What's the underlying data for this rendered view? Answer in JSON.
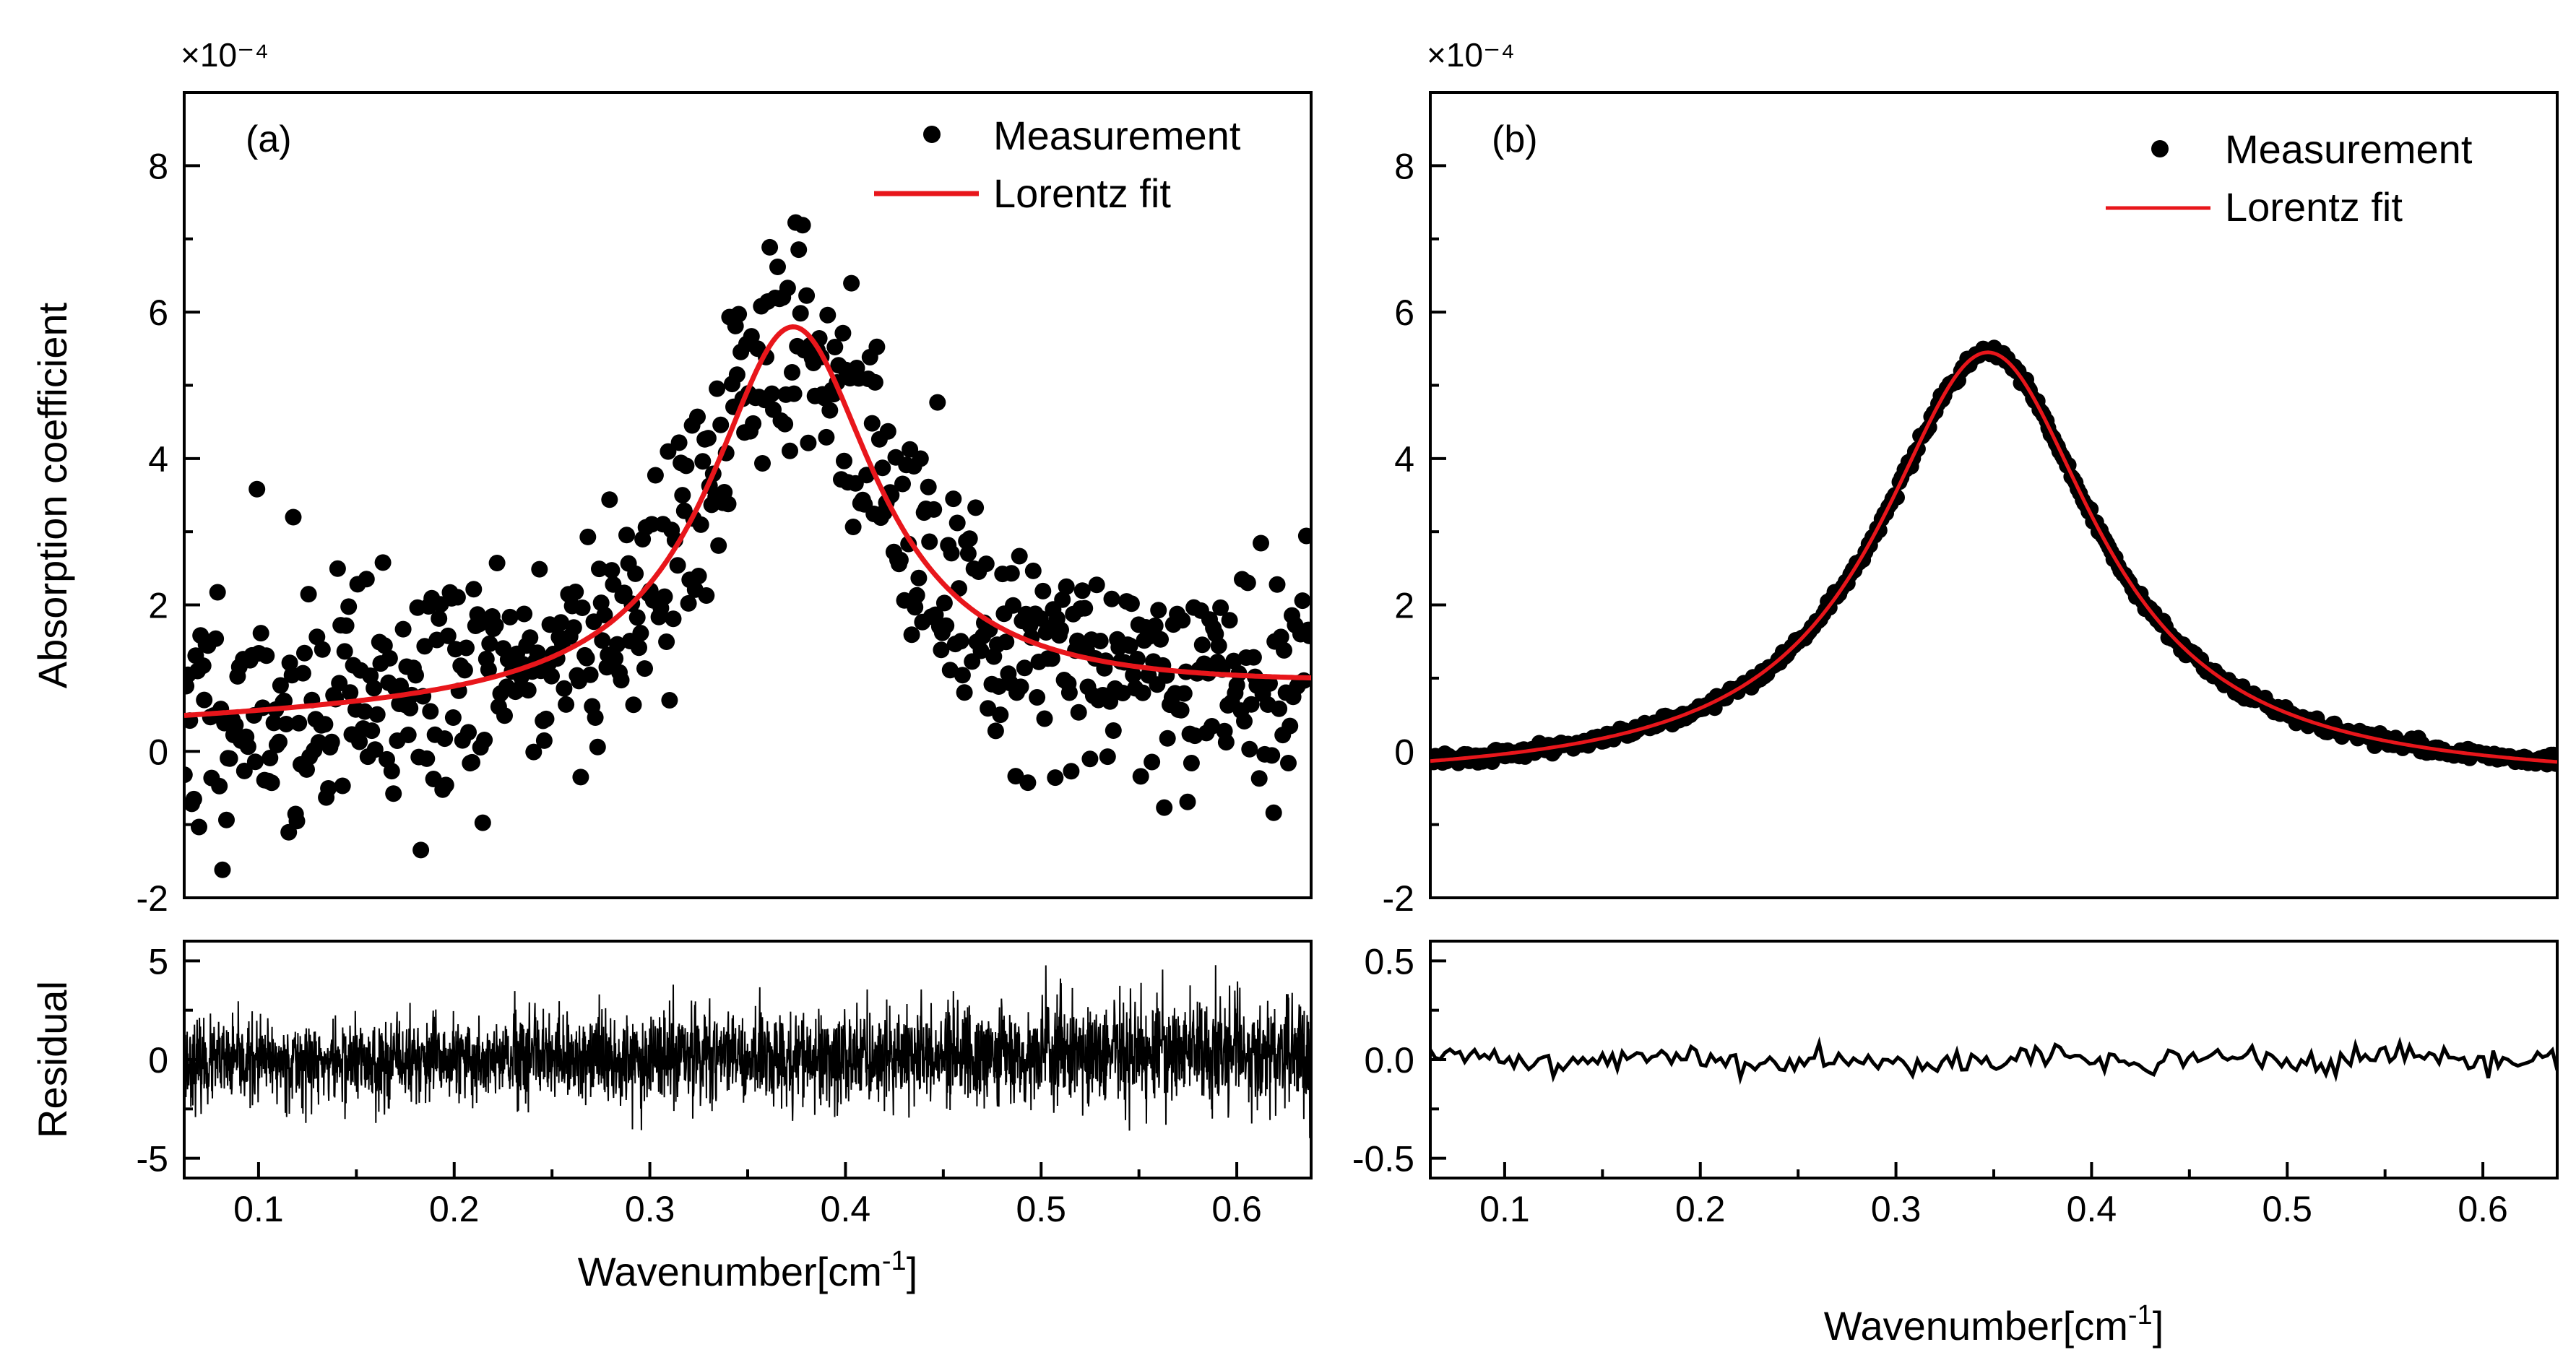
{
  "chart_data": [
    {
      "id": "a_top",
      "type": "scatter",
      "panel_label": "(a)",
      "ylabel": "Absorption coefficient",
      "y_multiplier": "×10⁻⁴",
      "xlim": [
        0.062,
        0.638
      ],
      "ylim": [
        -2,
        9
      ],
      "yticks": [
        -2,
        0,
        2,
        4,
        6,
        8
      ],
      "ytick_labels": [
        "-2",
        "0",
        "2",
        "4",
        "6",
        "8"
      ],
      "legend": {
        "placement": "top-right",
        "entries": [
          "Measurement",
          "Lorentz fit"
        ]
      },
      "series": [
        {
          "name": "Measurement",
          "kind": "noisy-points",
          "x_range": [
            0.062,
            0.638
          ],
          "count": 620,
          "noise_sd": 0.85,
          "seed": 11
        },
        {
          "name": "Lorentz fit",
          "kind": "lorentz",
          "color": "#e8161b",
          "center": 0.373,
          "hwhm": 0.052,
          "amplitude": 5.2,
          "offset": 0.35,
          "slope": 0.8
        }
      ]
    },
    {
      "id": "a_bottom",
      "type": "line",
      "ylabel": "Residual",
      "xlabel": "Wavenumber[cm",
      "xlabel_sup": "-1",
      "xlabel_end": "]",
      "xlim": [
        0.062,
        0.638
      ],
      "ylim": [
        -6,
        6
      ],
      "yticks": [
        -5,
        0,
        5
      ],
      "ytick_labels": [
        "-5",
        "0",
        "5"
      ],
      "xticks": [
        0.1,
        0.2,
        0.3,
        0.4,
        0.5,
        0.6
      ],
      "xtick_labels": [
        "0.1",
        "0.2",
        "0.3",
        "0.4",
        "0.5",
        "0.6"
      ],
      "series": [
        {
          "name": "Residual",
          "kind": "dense-noise",
          "count": 3400,
          "noise_sd_start": 1.0,
          "noise_sd_end": 1.35,
          "drift_start": -0.2,
          "drift_end": 0.4,
          "seed": 23
        }
      ]
    },
    {
      "id": "b_top",
      "type": "scatter",
      "panel_label": "(b)",
      "y_multiplier": "×10⁻⁴",
      "xlim": [
        0.062,
        0.638
      ],
      "ylim": [
        -2,
        9
      ],
      "yticks": [
        -2,
        0,
        2,
        4,
        6,
        8
      ],
      "ytick_labels": [
        "-2",
        "0",
        "2",
        "4",
        "6",
        "8"
      ],
      "legend": {
        "placement": "top-right",
        "entries": [
          "Measurement",
          "Lorentz fit"
        ]
      },
      "series": [
        {
          "name": "Measurement",
          "kind": "noisy-points",
          "x_range": [
            0.062,
            0.638
          ],
          "count": 500,
          "noise_sd": 0.04,
          "seed": 5
        },
        {
          "name": "Lorentz fit",
          "kind": "lorentz",
          "color": "#e8161b",
          "center": 0.347,
          "hwhm": 0.068,
          "amplitude": 5.9,
          "offset": -0.45,
          "slope": 0.0
        }
      ]
    },
    {
      "id": "b_bottom",
      "type": "line",
      "xlabel": "Wavenumber[cm",
      "xlabel_sup": "-1",
      "xlabel_end": "]",
      "xlim": [
        0.062,
        0.638
      ],
      "ylim": [
        -0.6,
        0.6
      ],
      "yticks": [
        -0.5,
        0.0,
        0.5
      ],
      "ytick_labels": [
        "-0.5",
        "0.0",
        "0.5"
      ],
      "xticks": [
        0.1,
        0.2,
        0.3,
        0.4,
        0.5,
        0.6
      ],
      "xtick_labels": [
        "0.1",
        "0.2",
        "0.3",
        "0.4",
        "0.5",
        "0.6"
      ],
      "series": [
        {
          "name": "Residual",
          "kind": "wavy-noise",
          "count": 230,
          "noise_sd": 0.03,
          "seed": 41
        }
      ]
    }
  ]
}
